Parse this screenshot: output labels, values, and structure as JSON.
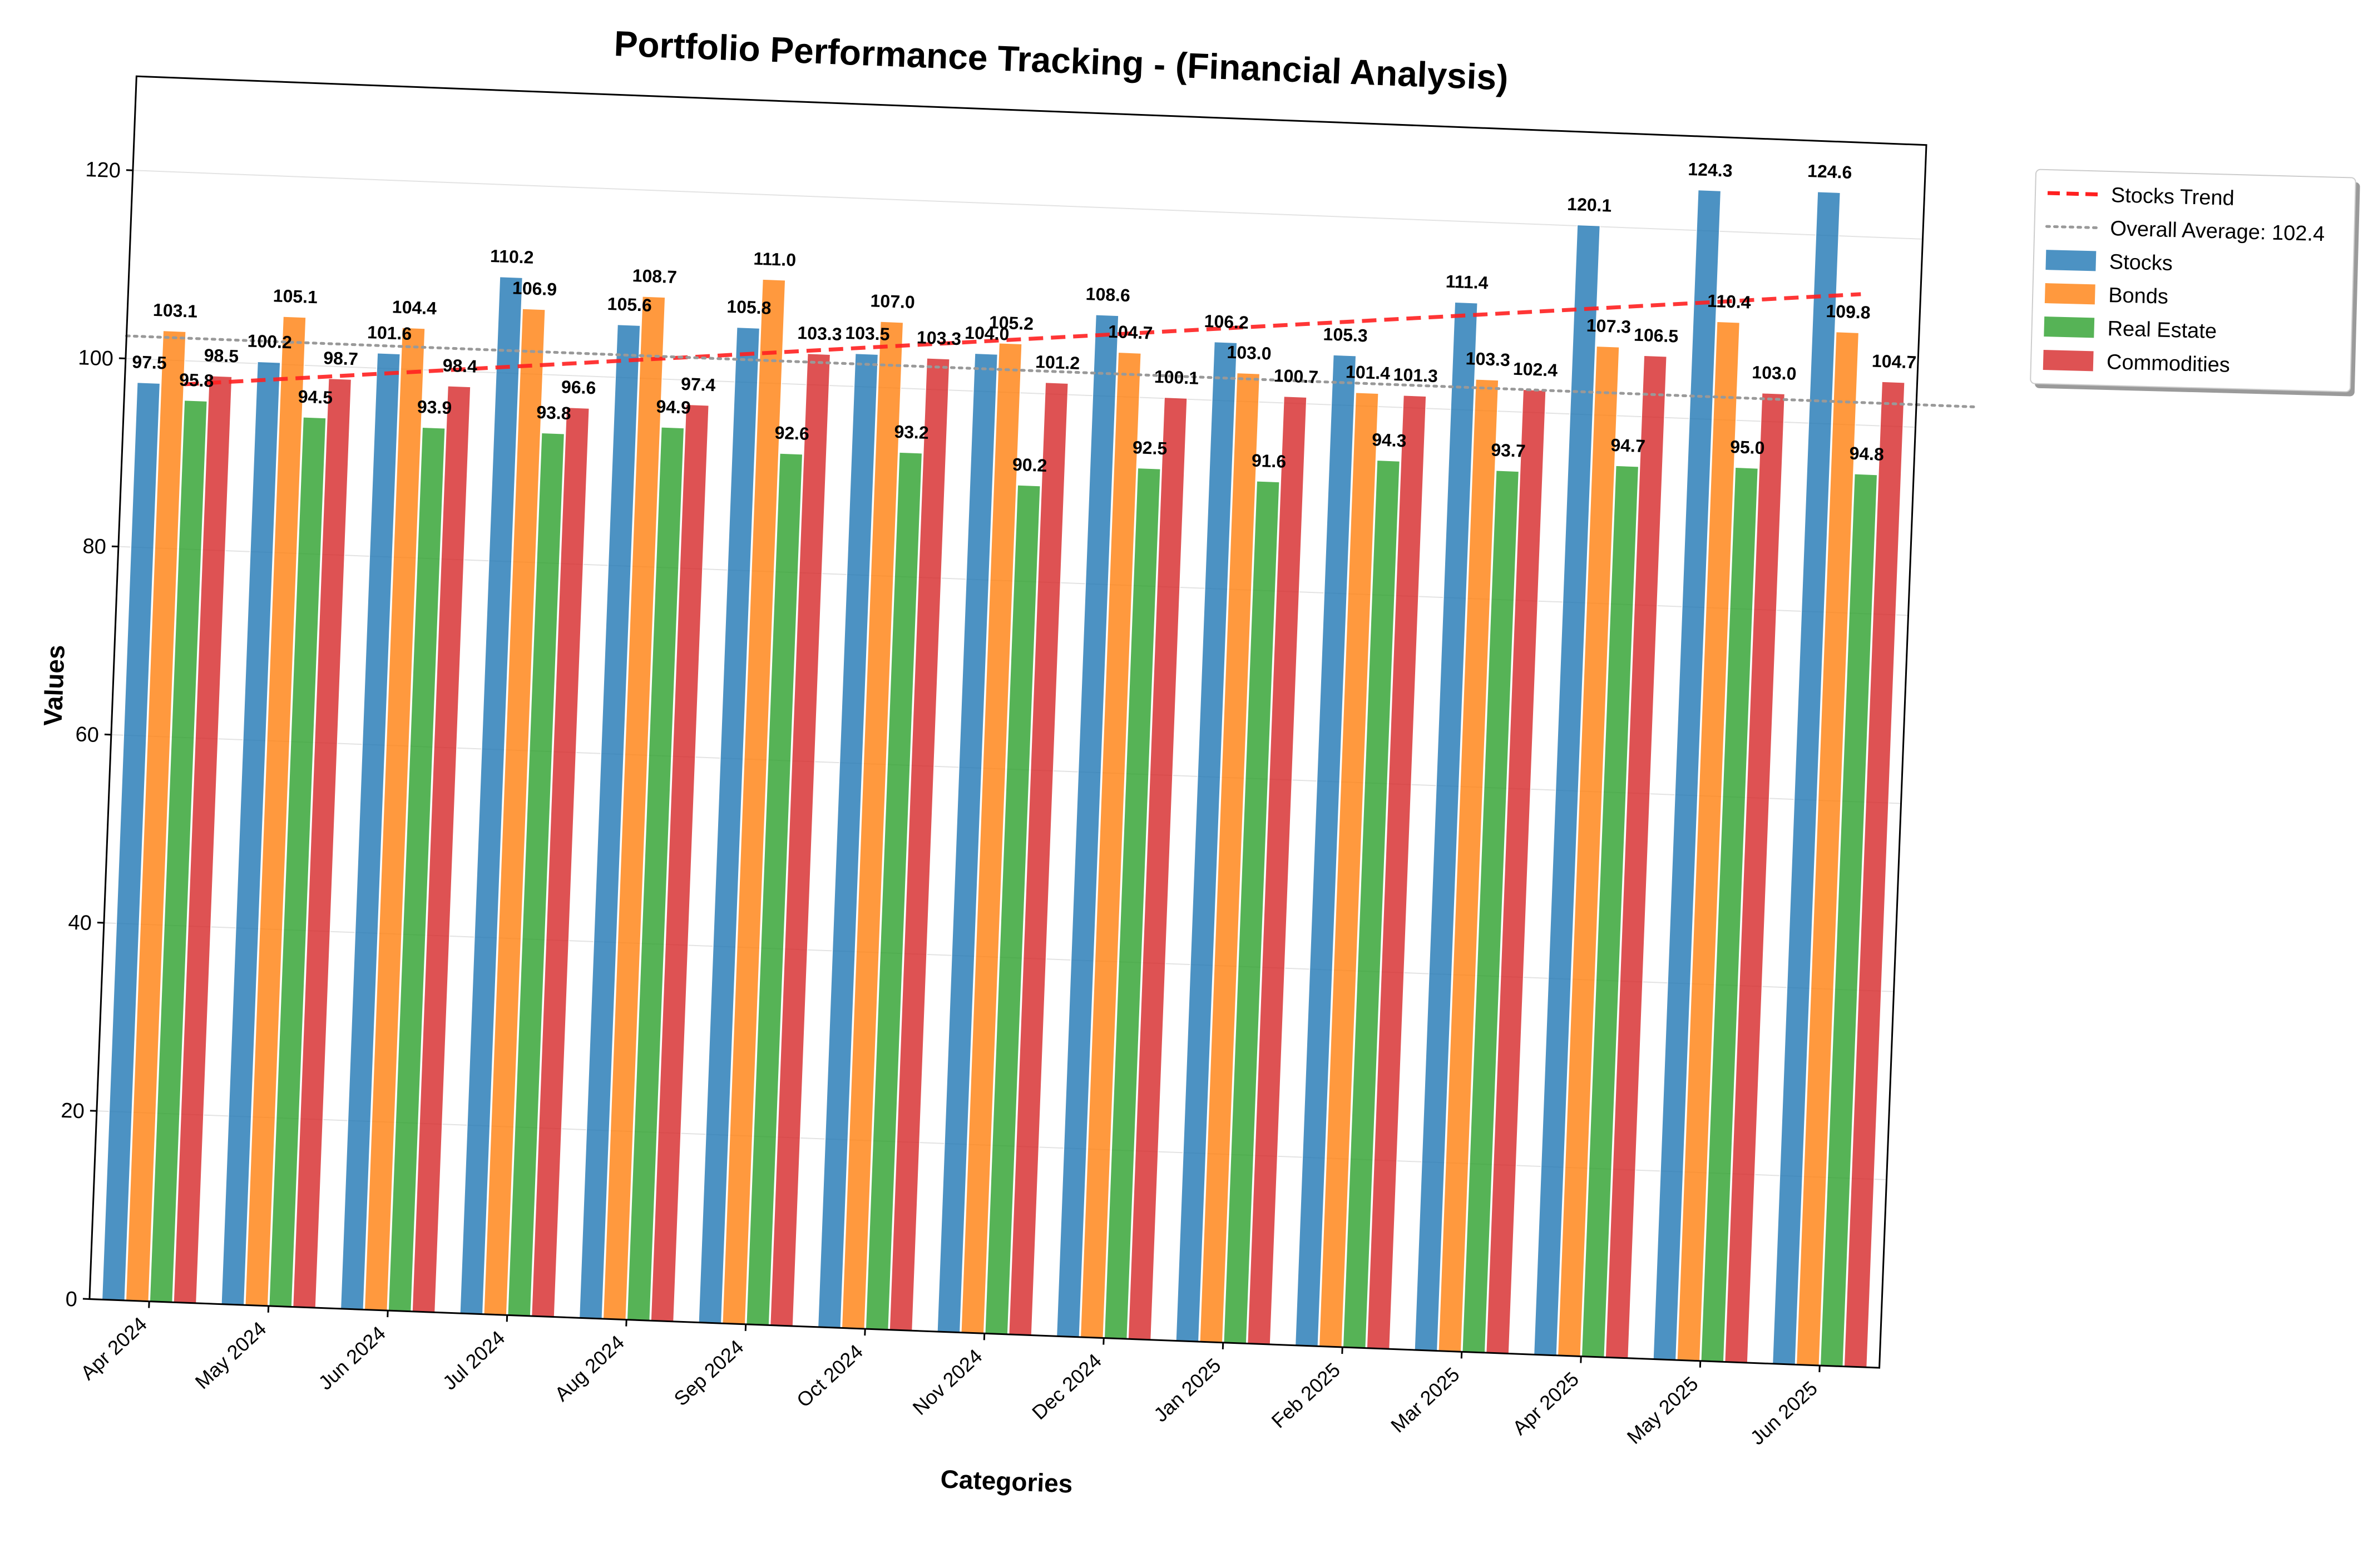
{
  "chart_data": {
    "type": "bar",
    "title": "Portfolio Performance Tracking - (Financial Analysis)",
    "xlabel": "Categories",
    "ylabel": "Values",
    "ylim": [
      0,
      130
    ],
    "yticks": [
      "0",
      "20",
      "40",
      "60",
      "80",
      "100",
      "120"
    ],
    "grid": "horizontal",
    "legend_position": "outside top-right",
    "categories": [
      "Apr 2024",
      "May 2024",
      "Jun 2024",
      "Jul 2024",
      "Aug 2024",
      "Sep 2024",
      "Oct 2024",
      "Nov 2024",
      "Dec 2024",
      "Jan 2025",
      "Feb 2025",
      "Mar 2025",
      "Apr 2025",
      "May 2025",
      "Jun 2025"
    ],
    "series": [
      {
        "name": "Stocks",
        "color": "#1f77b4",
        "values": [
          97.5,
          100.2,
          101.6,
          110.2,
          105.6,
          105.8,
          103.5,
          104.0,
          108.6,
          106.2,
          105.3,
          111.4,
          120.1,
          124.3,
          124.6
        ]
      },
      {
        "name": "Bonds",
        "color": "#ff7f0e",
        "values": [
          103.1,
          105.1,
          104.4,
          106.9,
          108.7,
          111.0,
          107.0,
          105.2,
          104.7,
          103.0,
          101.4,
          103.3,
          107.3,
          110.4,
          109.8
        ]
      },
      {
        "name": "Real Estate",
        "color": "#2ca02c",
        "values": [
          95.8,
          94.5,
          93.9,
          93.8,
          94.9,
          92.6,
          93.2,
          90.2,
          92.5,
          91.6,
          94.3,
          93.7,
          94.7,
          95.0,
          94.8
        ]
      },
      {
        "name": "Commodities",
        "color": "#d62728",
        "values": [
          98.5,
          98.7,
          98.4,
          96.6,
          97.4,
          103.3,
          103.3,
          101.2,
          100.1,
          100.7,
          101.3,
          102.4,
          106.5,
          103.0,
          104.7
        ]
      }
    ],
    "value_labels": {
      "Stocks": [
        "97.5",
        "100.2",
        "101.6",
        "110.2",
        "105.6",
        "105.8",
        "103.5",
        "104.0",
        "108.6",
        "106.2",
        "105.3",
        "111.4",
        "120.1",
        "124.3",
        "124.6"
      ],
      "Bonds": [
        "103.1",
        "105.1",
        "104.4",
        "106.9",
        "108.7",
        "111.0",
        "107.0",
        "105.2",
        "104.7",
        "103.0",
        "101.4",
        "103.3",
        "107.3",
        "110.4",
        "109.8"
      ],
      "Real Estate": [
        "95.8",
        "94.5",
        "93.9",
        "93.8",
        "94.9",
        "92.6",
        "93.2",
        "90.2",
        "92.5",
        "91.6",
        "94.3",
        "93.7",
        "94.7",
        "95.0",
        "94.8"
      ],
      "Commodities": [
        "98.5",
        "98.7",
        "98.4",
        "96.6",
        "97.4",
        "103.3",
        "103.3",
        "101.2",
        "100.1",
        "100.7",
        "101.3",
        "102.4",
        "106.5",
        "103.0",
        "104.7"
      ]
    },
    "trend_line": {
      "name": "Stocks Trend",
      "color": "#ff2020",
      "style": "dashed",
      "start": 97.5,
      "end": 113.9
    },
    "average_line": {
      "name": "Overall Average: 102.4",
      "color": "#999999",
      "style": "dotted",
      "value": 102.4
    },
    "legend": [
      "Stocks Trend",
      "Overall Average: 102.4",
      "Stocks",
      "Bonds",
      "Real Estate",
      "Commodities"
    ]
  }
}
